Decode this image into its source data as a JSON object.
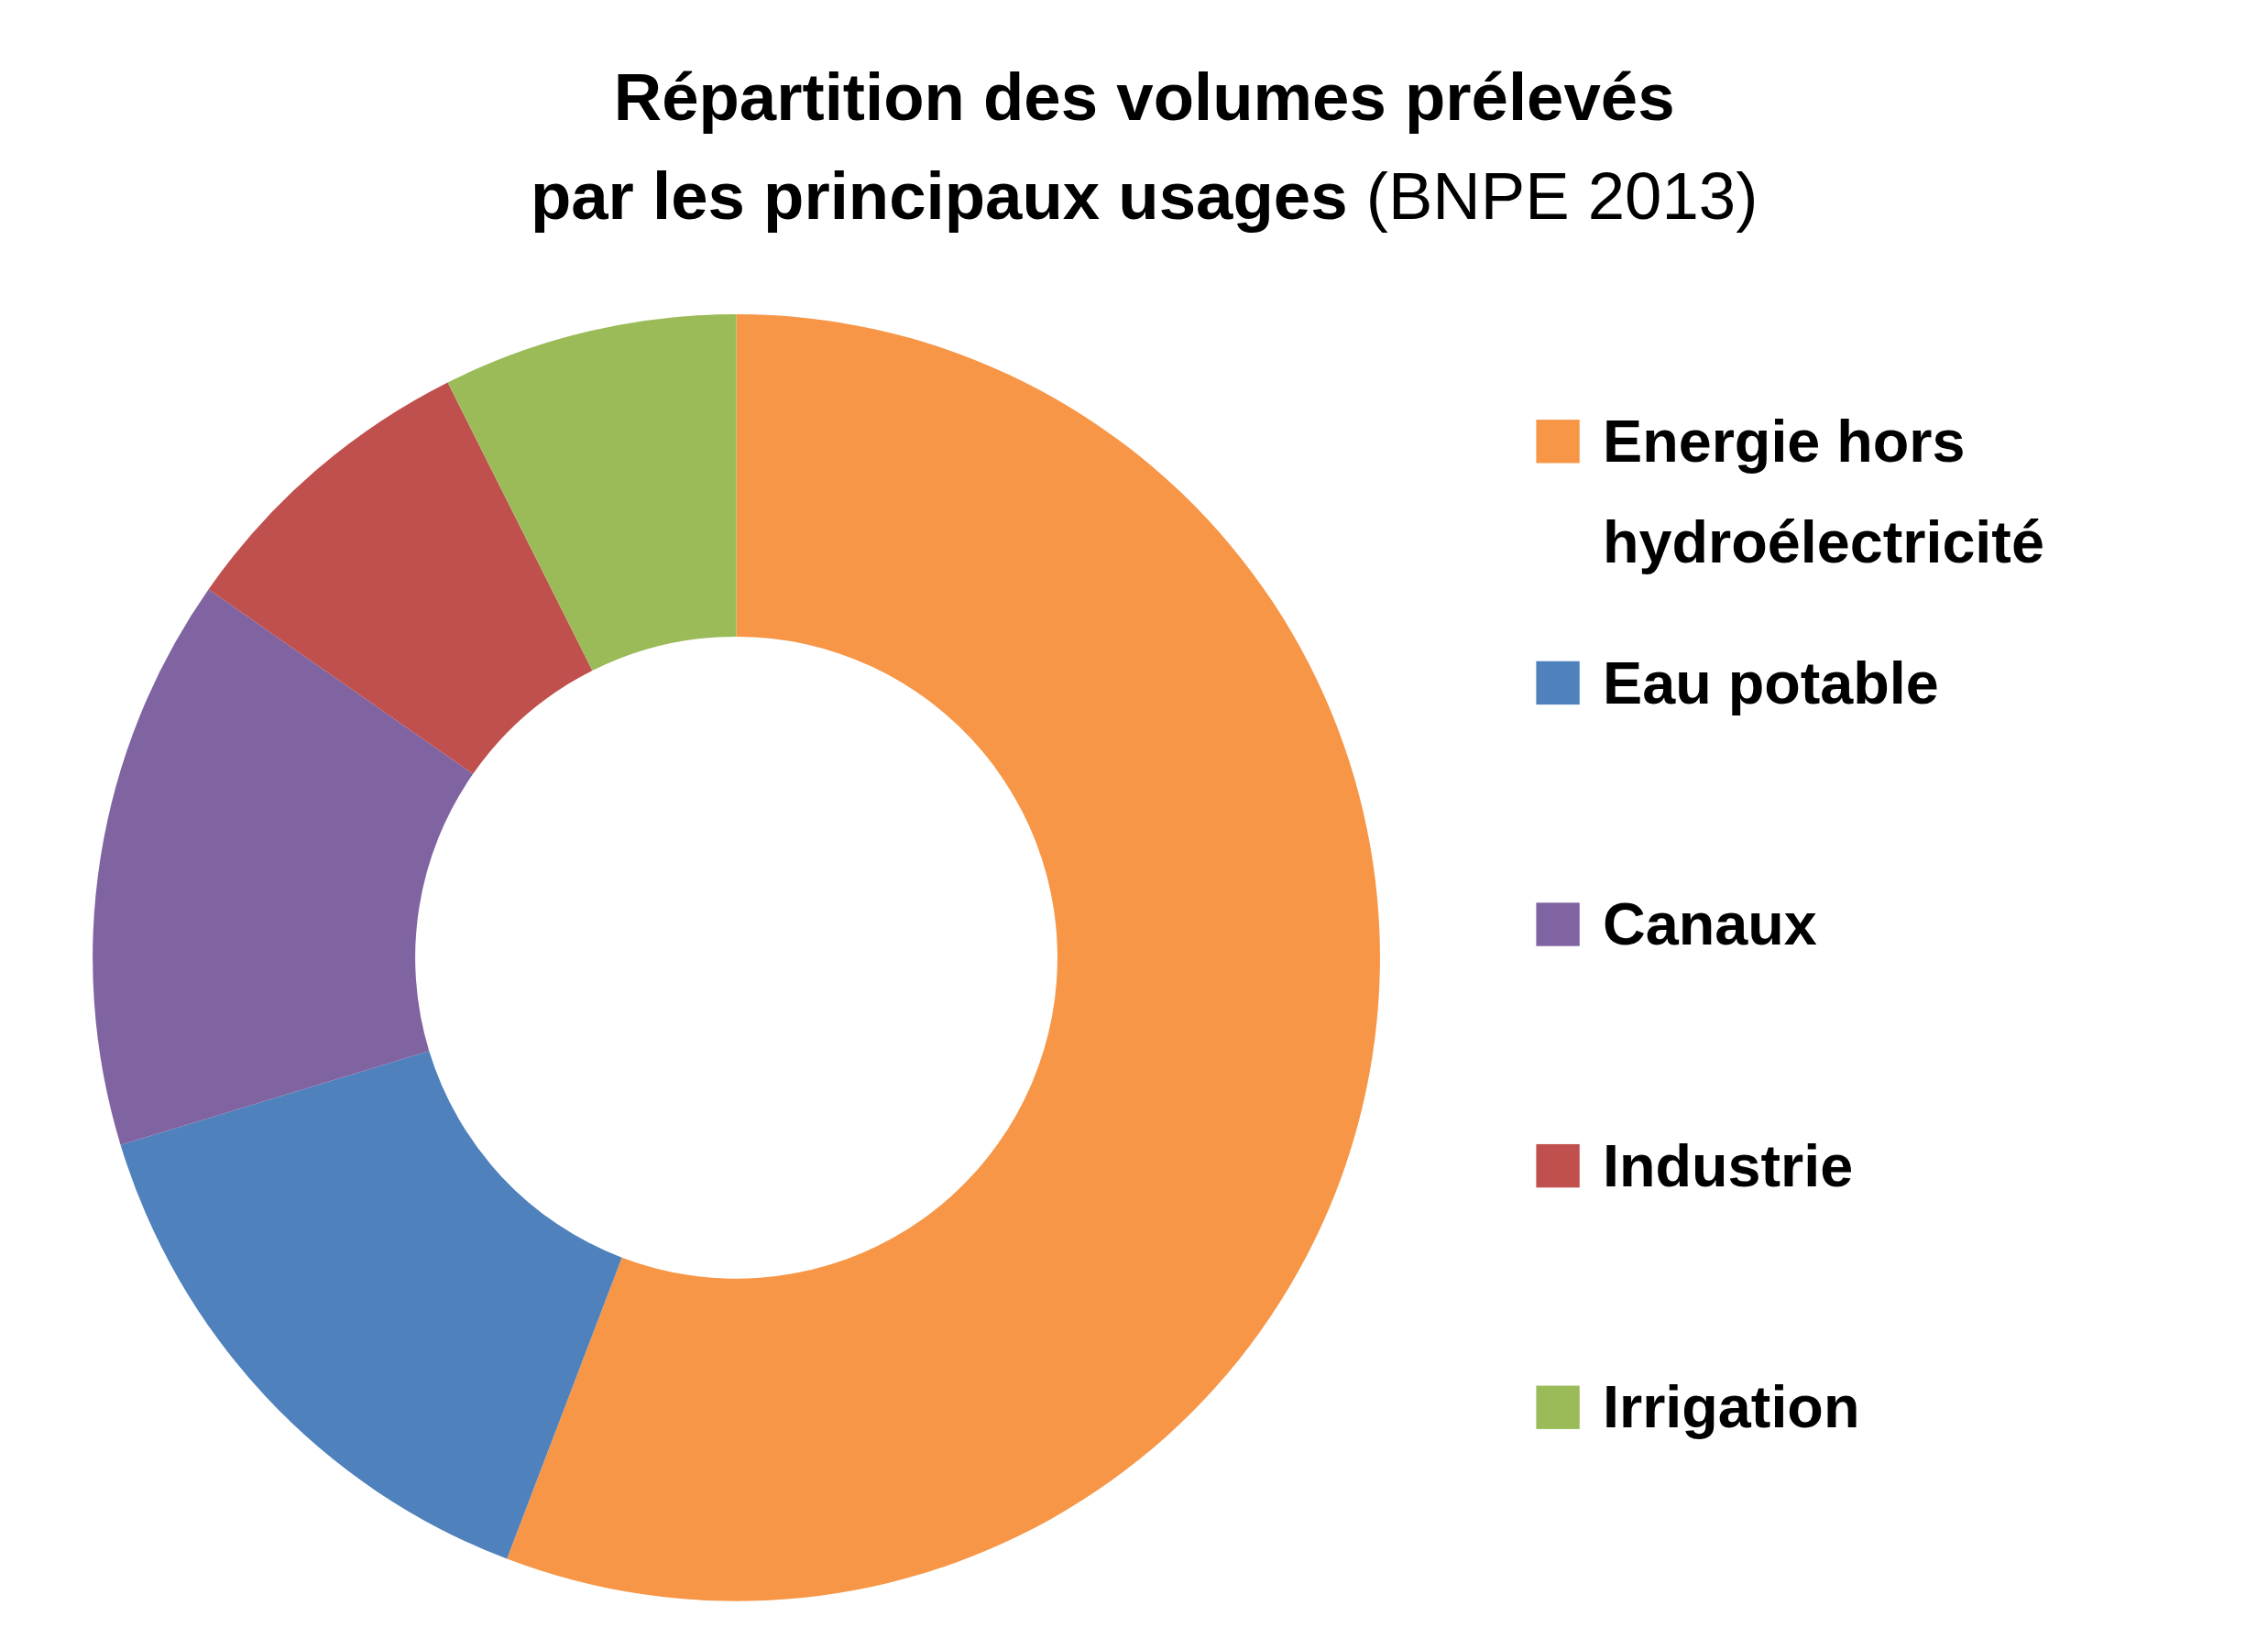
{
  "chart_data": {
    "type": "donut",
    "title": "Répartition des volumes prélevés\npar les principaux usages",
    "subtitle": "(BNPE 2013)",
    "categories": [
      "Energie hors hydroélectricité",
      "Eau potable",
      "Canaux",
      "Industrie",
      "Irrigation"
    ],
    "values": [
      55.8,
      14.5,
      14.4,
      7.9,
      7.4
    ],
    "colors": [
      "#f79646",
      "#4f81bd",
      "#8064a2",
      "#c0504d",
      "#9bbb59"
    ],
    "legend": "right"
  }
}
